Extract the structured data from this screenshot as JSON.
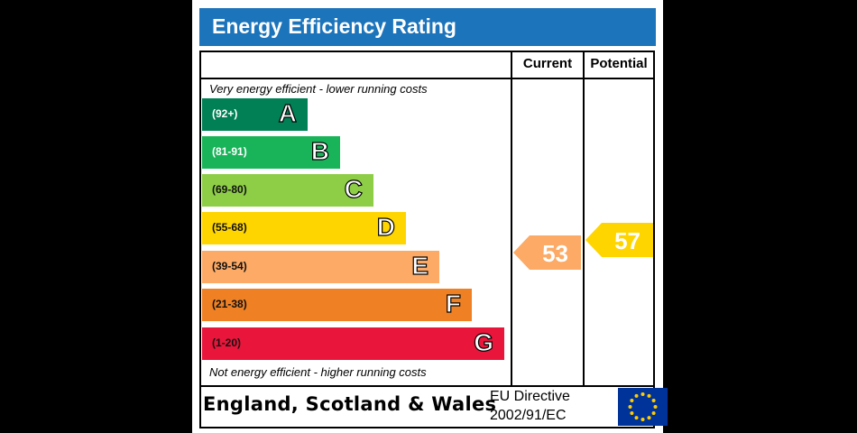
{
  "title": "Energy Efficiency Rating",
  "columns": {
    "current": "Current",
    "potential": "Potential"
  },
  "top_note": "Very energy efficient - lower running costs",
  "bottom_note": "Not energy efficient - higher running costs",
  "bands": [
    {
      "range": "(92+)",
      "letter": "A",
      "color": "#008054"
    },
    {
      "range": "(81-91)",
      "letter": "B",
      "color": "#19b459"
    },
    {
      "range": "(69-80)",
      "letter": "C",
      "color": "#8dce46"
    },
    {
      "range": "(55-68)",
      "letter": "D",
      "color": "#ffd500"
    },
    {
      "range": "(39-54)",
      "letter": "E",
      "color": "#fcaa65"
    },
    {
      "range": "(21-38)",
      "letter": "F",
      "color": "#ef8023"
    },
    {
      "range": "(1-20)",
      "letter": "G",
      "color": "#e9153b"
    }
  ],
  "current": {
    "value": "53",
    "band": "E",
    "color": "#fcaa65"
  },
  "potential": {
    "value": "57",
    "band": "D",
    "color": "#ffd500"
  },
  "footer": {
    "region": "England, Scotland & Wales",
    "directive_line1": "EU Directive",
    "directive_line2": "2002/91/EC"
  },
  "colors": {
    "title_bar": "#1c74bb",
    "eu_flag": "#003399",
    "eu_stars": "#ffcc00"
  }
}
